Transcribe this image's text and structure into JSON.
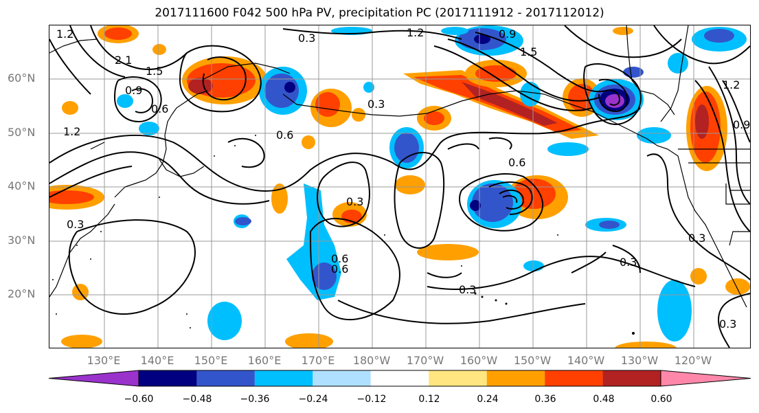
{
  "title": "2017111600 F042 500 hPa PV, precipitation PC (2017111912 - 2017112012)",
  "map": {
    "lat_labels": [
      "60°N",
      "50°N",
      "40°N",
      "30°N",
      "20°N"
    ],
    "lon_labels": [
      "130°E",
      "140°E",
      "150°E",
      "160°E",
      "170°E",
      "180°W",
      "170°W",
      "160°W",
      "150°W",
      "140°W",
      "130°W",
      "120°W"
    ],
    "contour_labels": [
      "1.2",
      "0.3",
      "1.2",
      "0.9",
      "1.5",
      "2.1",
      "1.5",
      "0.9",
      "0.6",
      "0.3",
      "0.6",
      "0.6",
      "1.2",
      "0.3",
      "0.6",
      "0.3",
      "0.6",
      "0.3",
      "0.3",
      "0.3",
      "0.3",
      "0.9",
      "1.2"
    ]
  },
  "colorbar": {
    "tick_labels": [
      "−0.60",
      "−0.48",
      "−0.36",
      "−0.24",
      "−0.12",
      "0.12",
      "0.24",
      "0.36",
      "0.48",
      "0.60"
    ],
    "colors": [
      "#9933cc",
      "#000080",
      "#3355cc",
      "#00bfff",
      "#b0e0ff",
      "#ffffff",
      "#ffe680",
      "#ffa000",
      "#ff4000",
      "#b22222",
      "#ff88aa"
    ]
  },
  "palette": {
    "contour": "#000000",
    "grid": "#999999",
    "coast": "#000000"
  }
}
